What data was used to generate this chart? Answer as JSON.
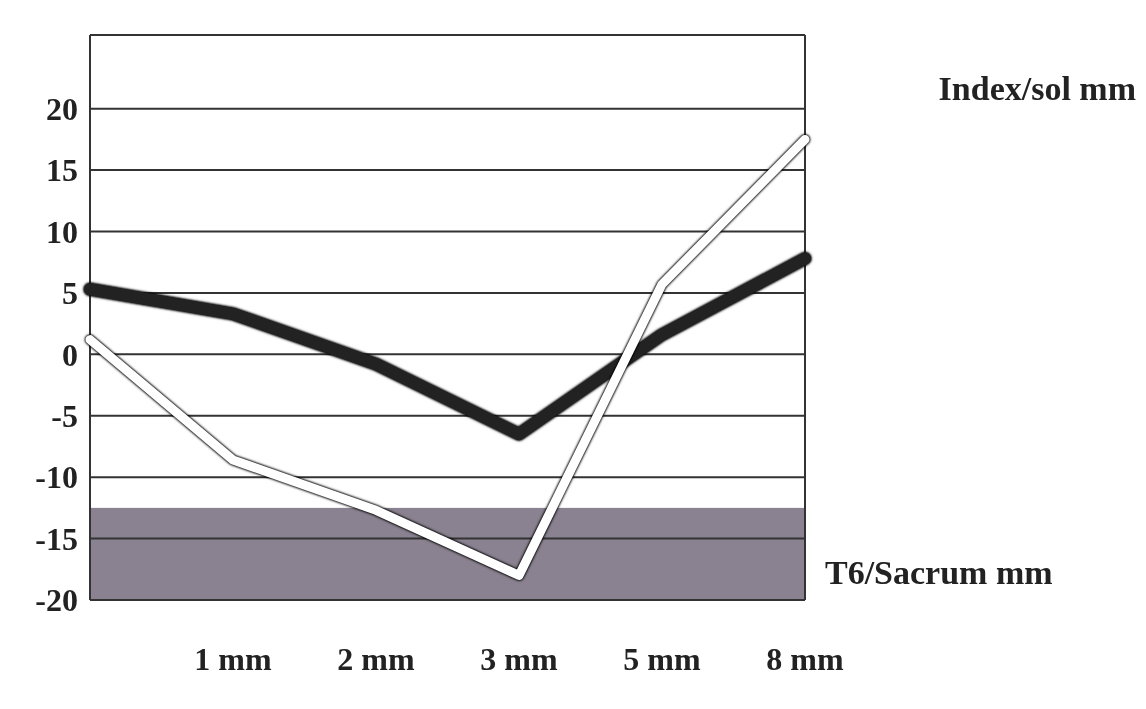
{
  "chart_data": {
    "type": "line",
    "categories": [
      null,
      "1 mm",
      "2 mm",
      "3 mm",
      "5 mm",
      "8 mm"
    ],
    "series": [
      {
        "color": "#222222",
        "values": [
          5.3,
          3.3,
          -0.8,
          -6.5,
          1.6,
          7.8
        ]
      },
      {
        "color": "#ffffff",
        "values": [
          1.2,
          -8.6,
          -12.7,
          -18,
          5.7,
          17.5
        ]
      }
    ],
    "ylim": [
      -20,
      26
    ],
    "yticks": [
      -20,
      -15,
      -10,
      -5,
      0,
      5,
      10,
      15,
      20
    ],
    "grid": "y",
    "bands": [
      {
        "axis": "y",
        "from": -20,
        "to": -12.5,
        "label": "T6/Sacrum mm",
        "color": "#8a8290"
      }
    ],
    "annotations": [
      "Index/sol mm"
    ]
  }
}
